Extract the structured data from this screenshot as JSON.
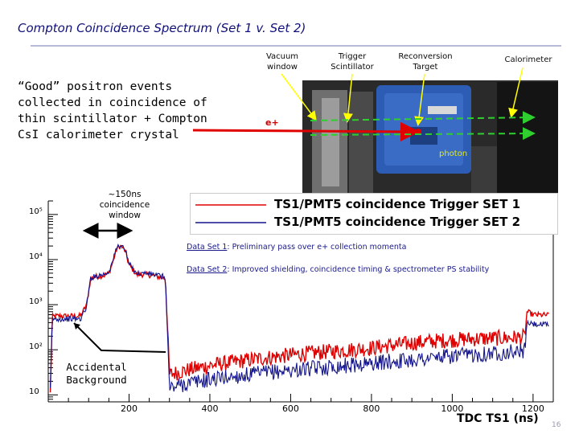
{
  "slide": {
    "title": "Compton Coincidence Spectrum (Set 1 v. Set 2)",
    "description": "“Good” positron events collected in coincidence of thin scintillator + Compton CsI calorimeter crystal",
    "page_number": "16"
  },
  "photo": {
    "labels": {
      "vacuum_window": "Vacuum window",
      "trigger_scintillator": "Trigger Scintillator",
      "reconversion_target": "Reconversion Target",
      "calorimeter": "Calorimeter"
    },
    "beam_label": "e+",
    "photon_label": "photon",
    "colors": {
      "beam": "#e00000",
      "photon": "#2fcf2f",
      "arrow": "#ffff00"
    }
  },
  "annotations": {
    "window_note": "~150ns coincidence window",
    "accidental_label": "Accidental Background",
    "note1_label": "Data Set 1",
    "note1_text": ": Preliminary pass over e+ collection momenta",
    "note2_label": "Data Set 2",
    "note2_text": ": Improved shielding, coincidence timing & spectrometer PS stability"
  },
  "chart_data": {
    "type": "line",
    "xlabel": "TDC TS1 (ns)",
    "ylabel": "",
    "title": "",
    "xlim": [
      0,
      1250
    ],
    "ylim": [
      7,
      200000
    ],
    "y_scale": "log",
    "x_ticks": [
      200,
      400,
      600,
      800,
      1000,
      1200
    ],
    "y_ticks": [
      {
        "value": 100000,
        "label": "10⁵"
      },
      {
        "value": 10000,
        "label": "10⁴"
      },
      {
        "value": 1000,
        "label": "10³"
      },
      {
        "value": 100,
        "label": "10²"
      },
      {
        "value": 10,
        "label": "10"
      }
    ],
    "legend": {
      "position": "top-right"
    },
    "series": [
      {
        "name": "TS1/PMT5 coincidence Trigger SET 1",
        "color": "#e00000",
        "x": [
          5,
          10,
          20,
          30,
          40,
          60,
          80,
          95,
          105,
          120,
          140,
          150,
          160,
          170,
          180,
          190,
          200,
          220,
          240,
          260,
          280,
          290,
          300,
          310,
          330,
          360,
          400,
          450,
          500,
          550,
          600,
          650,
          700,
          750,
          800,
          850,
          900,
          950,
          1000,
          1050,
          1100,
          1150,
          1180,
          1185,
          1200,
          1220,
          1240
        ],
        "y": [
          10,
          550,
          560,
          560,
          560,
          560,
          560,
          1000,
          3800,
          4200,
          4500,
          5000,
          9000,
          18000,
          20000,
          16000,
          7500,
          4600,
          4700,
          4400,
          4000,
          3800,
          28,
          30,
          33,
          38,
          45,
          52,
          60,
          68,
          76,
          84,
          92,
          100,
          110,
          125,
          140,
          155,
          165,
          175,
          180,
          185,
          190,
          700,
          600,
          590,
          590
        ]
      },
      {
        "name": "TS1/PMT5 coincidence Trigger SET 2",
        "color": "#14148c",
        "x": [
          5,
          10,
          20,
          30,
          40,
          60,
          80,
          95,
          105,
          120,
          140,
          150,
          160,
          170,
          180,
          190,
          200,
          220,
          240,
          260,
          280,
          290,
          300,
          310,
          330,
          360,
          400,
          450,
          500,
          550,
          600,
          650,
          700,
          750,
          800,
          850,
          900,
          950,
          1000,
          1050,
          1100,
          1150,
          1180,
          1185,
          1200,
          1220,
          1240
        ],
        "y": [
          10,
          480,
          480,
          480,
          480,
          480,
          480,
          900,
          3900,
          4400,
          4800,
          5400,
          9500,
          19000,
          21000,
          17000,
          8000,
          4900,
          5000,
          4700,
          4300,
          4100,
          14,
          15,
          17,
          19,
          22,
          25,
          28,
          32,
          35,
          38,
          42,
          46,
          50,
          55,
          60,
          66,
          72,
          78,
          84,
          90,
          96,
          400,
          370,
          360,
          360
        ]
      }
    ]
  }
}
